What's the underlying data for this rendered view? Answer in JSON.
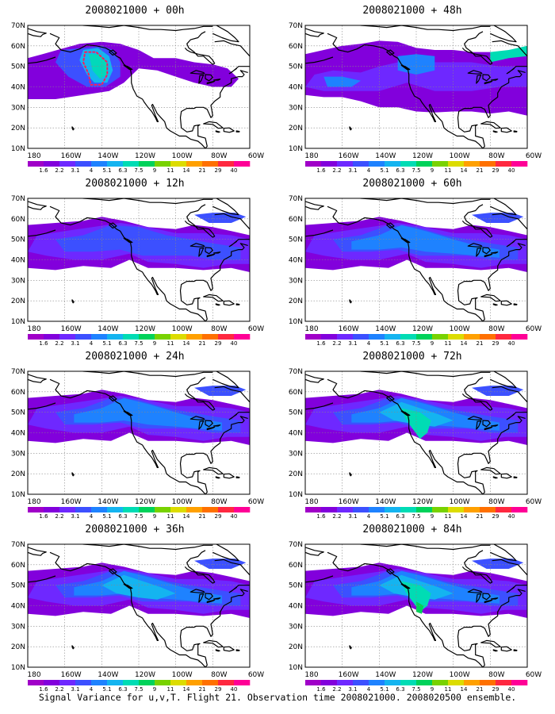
{
  "caption": "Signal Variance for u,v,T. Flight 21. Observation time 2008021000. 2008020500 ensemble.",
  "colorbar": {
    "labels": [
      "1.6",
      "2.2",
      "3.1",
      "4",
      "5.1",
      "6.3",
      "7.5",
      "9",
      "11",
      "14",
      "21",
      "29",
      "40"
    ],
    "colors": [
      "#a000c8",
      "#8200dc",
      "#6e28ff",
      "#3c50ff",
      "#1e82ff",
      "#14b4f0",
      "#00dcb4",
      "#00d25a",
      "#78d200",
      "#dcdc00",
      "#ffa000",
      "#ff7000",
      "#ff2840",
      "#ff0096"
    ]
  },
  "map": {
    "lat_ticks": [
      "70N",
      "60N",
      "50N",
      "40N",
      "30N",
      "20N",
      "10N"
    ],
    "lon_ticks": [
      "180",
      "160W",
      "140W",
      "120W",
      "100W",
      "80W",
      "60W"
    ]
  },
  "panels": [
    {
      "title": "2008021000 + 00h",
      "intensity": 0.35,
      "flight_track": true
    },
    {
      "title": "2008021000 + 12h",
      "intensity": 0.5,
      "flight_track": false
    },
    {
      "title": "2008021000 + 24h",
      "intensity": 0.65,
      "flight_track": false
    },
    {
      "title": "2008021000 + 36h",
      "intensity": 0.8,
      "flight_track": false
    },
    {
      "title": "2008021000 + 48h",
      "intensity": 0.55,
      "flight_track": false
    },
    {
      "title": "2008021000 + 60h",
      "intensity": 0.75,
      "flight_track": false
    },
    {
      "title": "2008021000 + 72h",
      "intensity": 0.9,
      "flight_track": false
    },
    {
      "title": "2008021000 + 84h",
      "intensity": 1.0,
      "flight_track": false
    }
  ]
}
